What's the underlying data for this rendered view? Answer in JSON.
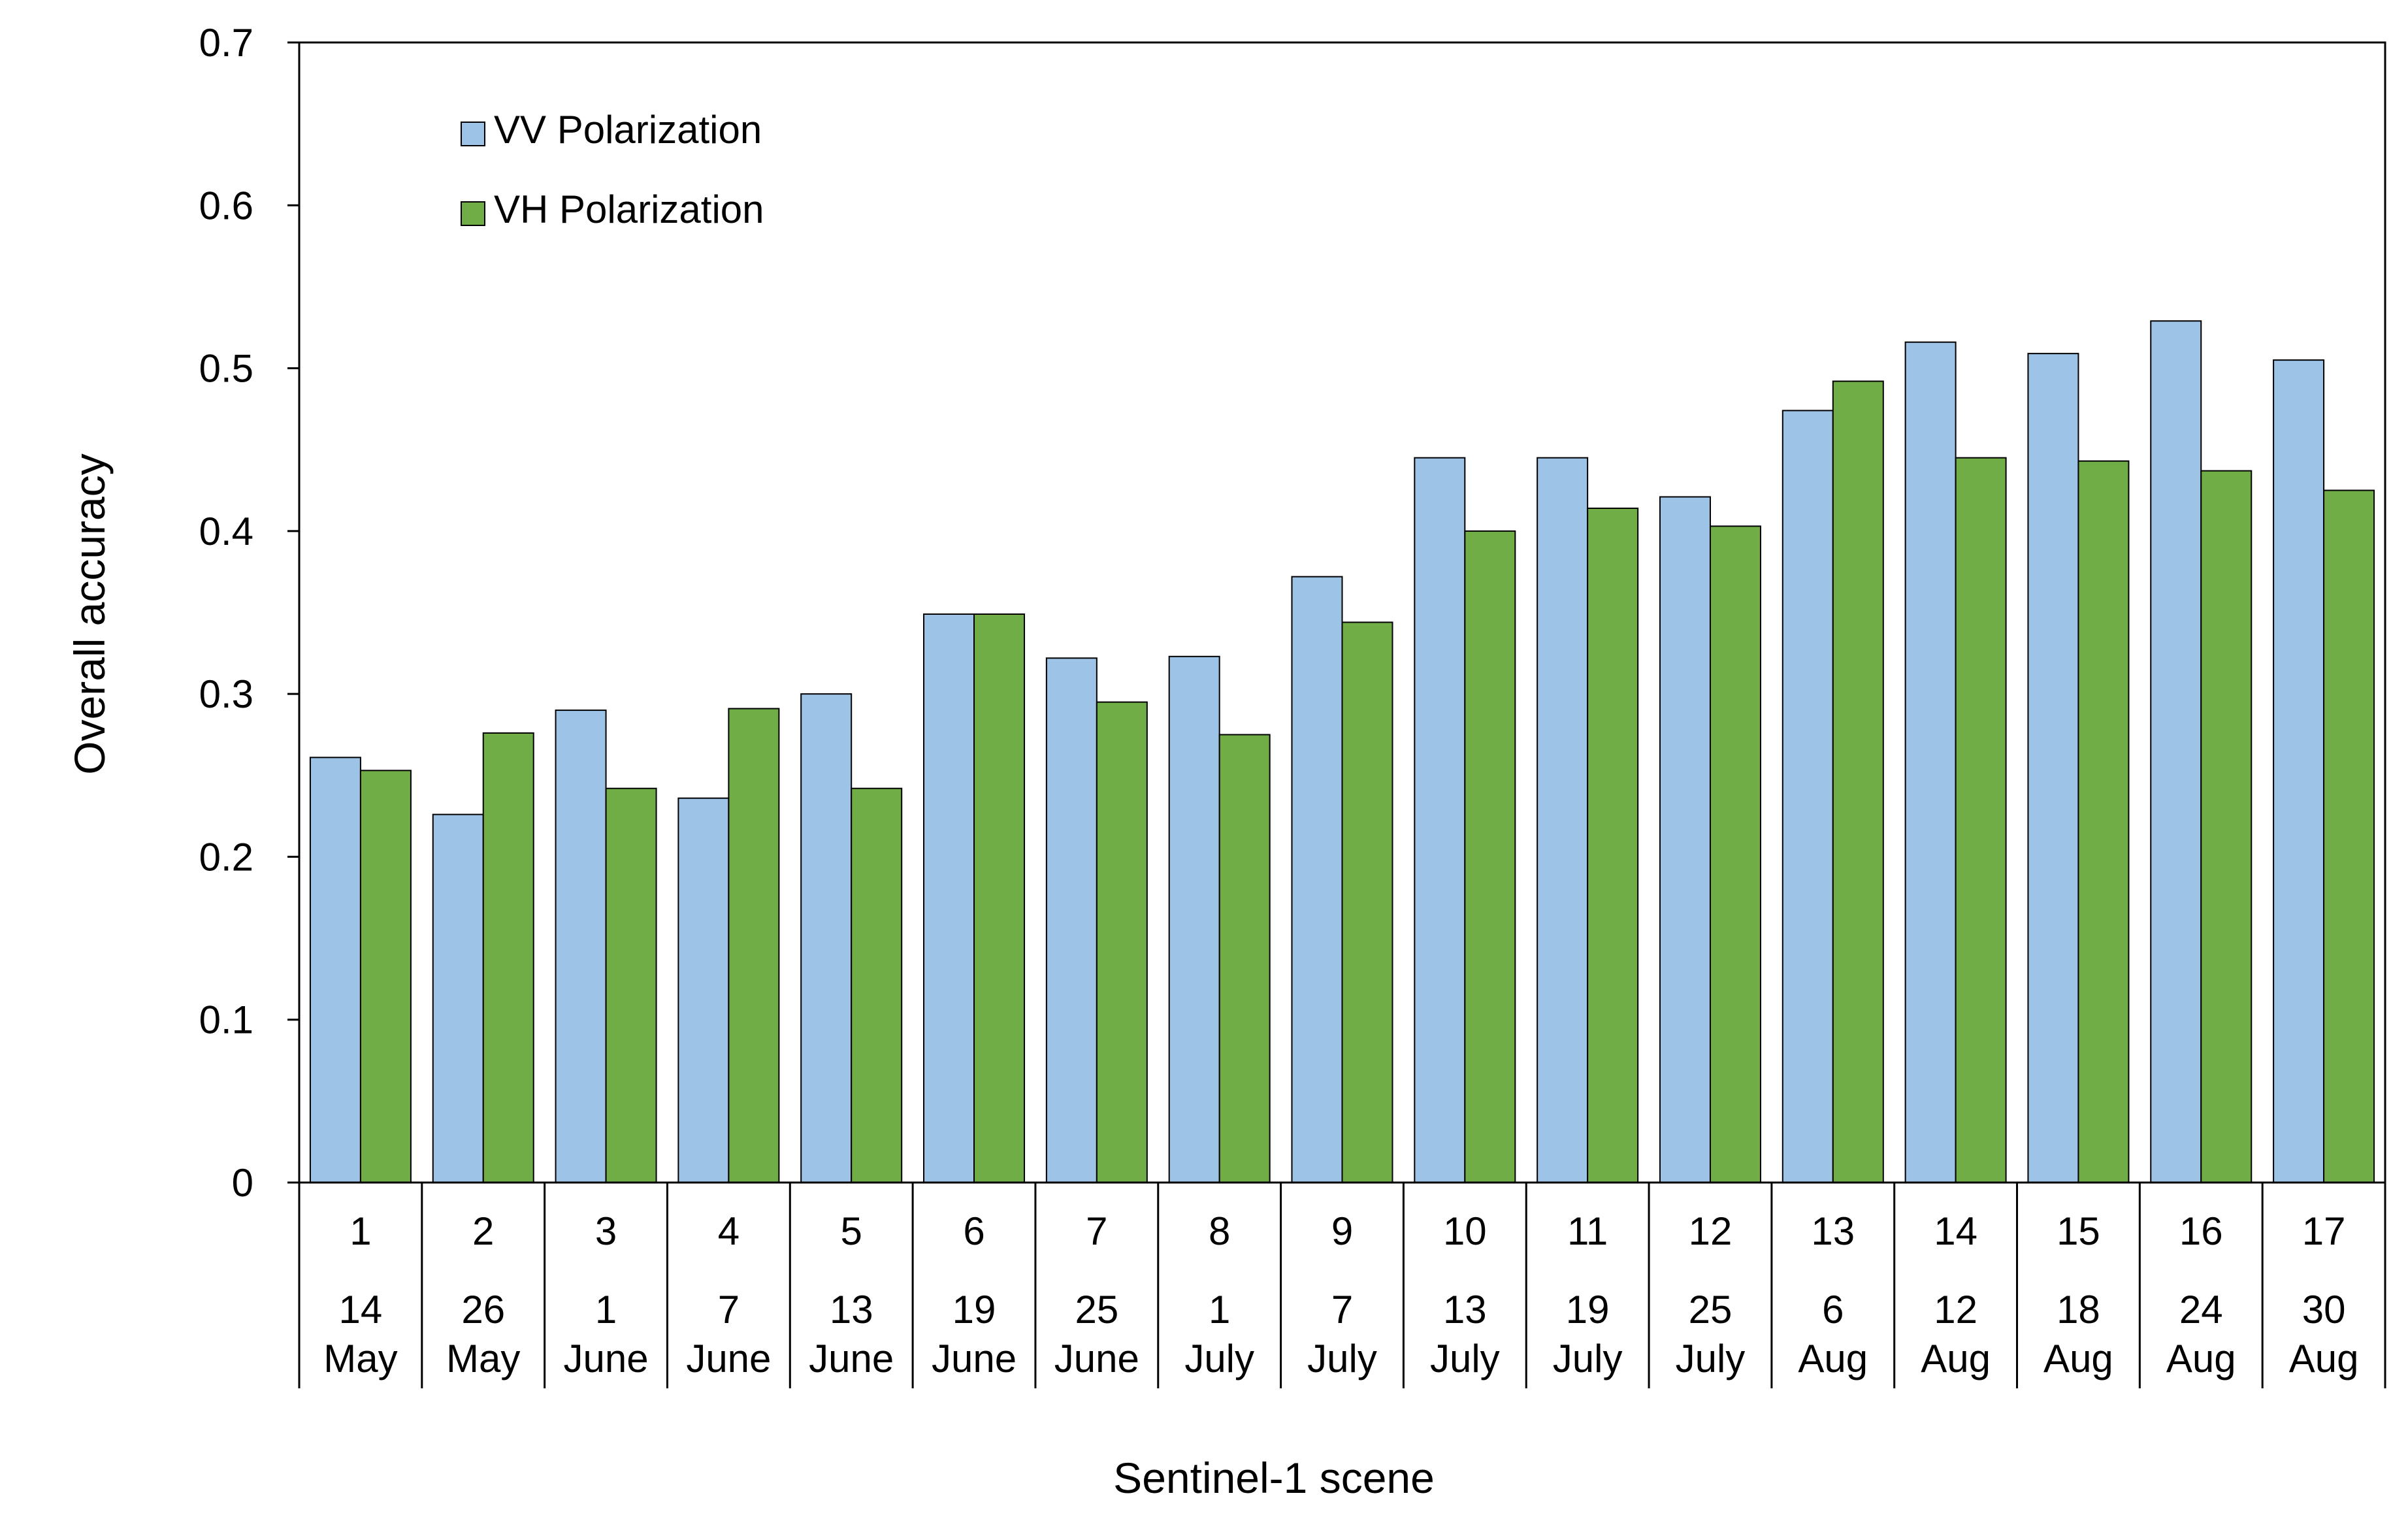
{
  "chart_data": {
    "type": "bar",
    "title": "",
    "xlabel": "Sentinel-1 scene",
    "ylabel": "Overall accuracy",
    "ylim": [
      0,
      0.7
    ],
    "yticks": [
      "0",
      "0.1",
      "0.2",
      "0.3",
      "0.4",
      "0.5",
      "0.6",
      "0.7"
    ],
    "grid": false,
    "legend_position": "top-left",
    "categories": [
      {
        "scene": "1",
        "day": "14",
        "month": "May"
      },
      {
        "scene": "2",
        "day": "26",
        "month": "May"
      },
      {
        "scene": "3",
        "day": "1",
        "month": "June"
      },
      {
        "scene": "4",
        "day": "7",
        "month": "June"
      },
      {
        "scene": "5",
        "day": "13",
        "month": "June"
      },
      {
        "scene": "6",
        "day": "19",
        "month": "June"
      },
      {
        "scene": "7",
        "day": "25",
        "month": "June"
      },
      {
        "scene": "8",
        "day": "1",
        "month": "July"
      },
      {
        "scene": "9",
        "day": "7",
        "month": "July"
      },
      {
        "scene": "10",
        "day": "13",
        "month": "July"
      },
      {
        "scene": "11",
        "day": "19",
        "month": "July"
      },
      {
        "scene": "12",
        "day": "25",
        "month": "July"
      },
      {
        "scene": "13",
        "day": "6",
        "month": "Aug"
      },
      {
        "scene": "14",
        "day": "12",
        "month": "Aug"
      },
      {
        "scene": "15",
        "day": "18",
        "month": "Aug"
      },
      {
        "scene": "16",
        "day": "24",
        "month": "Aug"
      },
      {
        "scene": "17",
        "day": "30",
        "month": "Aug"
      }
    ],
    "series": [
      {
        "name": "VV Polarization",
        "color": "#9DC3E6",
        "values": [
          0.261,
          0.226,
          0.29,
          0.236,
          0.3,
          0.349,
          0.322,
          0.323,
          0.372,
          0.445,
          0.445,
          0.421,
          0.474,
          0.516,
          0.509,
          0.529,
          0.505
        ]
      },
      {
        "name": "VH Polarization",
        "color": "#70AD47",
        "values": [
          0.253,
          0.276,
          0.242,
          0.291,
          0.242,
          0.349,
          0.295,
          0.275,
          0.344,
          0.4,
          0.414,
          0.403,
          0.492,
          0.445,
          0.443,
          0.437,
          0.425
        ]
      }
    ]
  }
}
